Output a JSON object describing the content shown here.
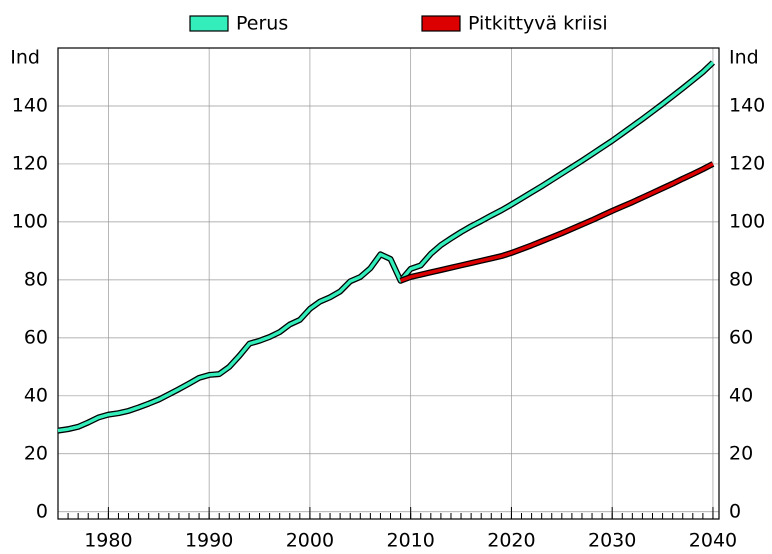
{
  "chart_data": {
    "type": "line",
    "y_label": "Ind",
    "x": [
      1975,
      1976,
      1977,
      1978,
      1979,
      1980,
      1981,
      1982,
      1983,
      1984,
      1985,
      1986,
      1987,
      1988,
      1989,
      1990,
      1991,
      1992,
      1993,
      1994,
      1995,
      1996,
      1997,
      1998,
      1999,
      2000,
      2001,
      2002,
      2003,
      2004,
      2005,
      2006,
      2007,
      2008,
      2009,
      2010,
      2011,
      2012,
      2013,
      2014,
      2015,
      2016,
      2017,
      2018,
      2019,
      2020,
      2021,
      2022,
      2023,
      2024,
      2025,
      2026,
      2027,
      2028,
      2029,
      2030,
      2031,
      2032,
      2033,
      2034,
      2035,
      2036,
      2037,
      2038,
      2039,
      2040
    ],
    "series": [
      {
        "name": "Perus",
        "color": "#33eebb",
        "values": [
          28,
          28.5,
          29.3,
          30.8,
          32.5,
          33.5,
          34,
          34.8,
          36,
          37.3,
          38.7,
          40.5,
          42.3,
          44.2,
          46.2,
          47.2,
          47.5,
          50,
          53.8,
          58,
          59,
          60.3,
          62,
          64.6,
          66.2,
          70,
          72.5,
          74,
          76,
          79.5,
          81,
          84,
          88.8,
          87.2,
          79.7,
          83.8,
          85,
          89,
          92,
          94.3,
          96.5,
          98.5,
          100.3,
          102.2,
          104,
          106,
          108.1,
          110.2,
          112.3,
          114.5,
          116.7,
          118.9,
          121.1,
          123.4,
          125.7,
          128,
          130.5,
          133,
          135.5,
          138.1,
          140.7,
          143.4,
          146.1,
          148.9,
          151.7,
          155
        ]
      },
      {
        "name": "Pitkittyvä kriisi",
        "color": "#dd0000",
        "values": [
          null,
          null,
          null,
          null,
          null,
          null,
          null,
          null,
          null,
          null,
          null,
          null,
          null,
          null,
          null,
          null,
          null,
          null,
          null,
          null,
          null,
          null,
          null,
          null,
          null,
          null,
          null,
          null,
          null,
          null,
          null,
          null,
          null,
          null,
          79.7,
          81,
          81.8,
          82.6,
          83.4,
          84.2,
          85,
          85.8,
          86.6,
          87.4,
          88.2,
          89.3,
          90.6,
          91.9,
          93.3,
          94.7,
          96.1,
          97.6,
          99.1,
          100.6,
          102.2,
          103.8,
          105.3,
          106.8,
          108.4,
          110,
          111.6,
          113.2,
          114.9,
          116.5,
          118.2,
          120
        ]
      }
    ],
    "xlim": [
      1975,
      2040.6
    ],
    "xticks": [
      1980,
      1990,
      2000,
      2010,
      2020,
      2030,
      2040
    ],
    "ylim": [
      -2.5,
      160
    ],
    "yticks": [
      0,
      20,
      40,
      60,
      80,
      100,
      120,
      140
    ],
    "grid": true
  }
}
